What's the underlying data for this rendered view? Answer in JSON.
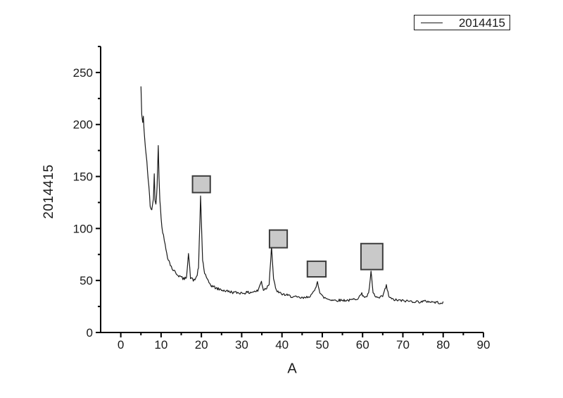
{
  "chart_data": {
    "type": "line",
    "title": "",
    "xlabel": "A",
    "ylabel": "2014415",
    "legend": {
      "label": "2014415",
      "position": "top-right"
    },
    "x_range": [
      -5,
      90
    ],
    "y_range": [
      0,
      275
    ],
    "x_ticks_major": [
      0,
      10,
      20,
      30,
      40,
      50,
      60,
      70,
      80,
      90
    ],
    "x_ticks_minor": [
      5,
      15,
      25,
      35,
      45,
      55,
      65,
      75,
      85
    ],
    "y_ticks_major": [
      0,
      50,
      100,
      150,
      200,
      250
    ],
    "y_ticks_minor": [
      25,
      75,
      125,
      175,
      225,
      275
    ],
    "grid": false,
    "line_color": "#1a1a1a",
    "axis_color": "#000000",
    "series": [
      {
        "name": "2014415",
        "noise_base": 1.0,
        "noise_scale": 0.009,
        "step": 0.2,
        "seed": 42,
        "profile": [
          [
            5.0,
            236
          ],
          [
            5.2,
            210
          ],
          [
            5.45,
            200
          ],
          [
            5.6,
            207
          ],
          [
            5.9,
            188
          ],
          [
            6.3,
            170
          ],
          [
            6.8,
            148
          ],
          [
            7.3,
            122
          ],
          [
            7.7,
            118
          ],
          [
            8.1,
            128
          ],
          [
            8.3,
            155
          ],
          [
            8.5,
            127
          ],
          [
            8.7,
            122
          ],
          [
            9.0,
            140
          ],
          [
            9.3,
            181
          ],
          [
            9.5,
            150
          ],
          [
            9.7,
            128
          ],
          [
            10.0,
            110
          ],
          [
            10.4,
            97
          ],
          [
            11.0,
            84
          ],
          [
            11.6,
            73
          ],
          [
            12.3,
            65
          ],
          [
            13.0,
            60
          ],
          [
            14.0,
            56
          ],
          [
            15.0,
            53
          ],
          [
            15.8,
            51
          ],
          [
            16.3,
            54
          ],
          [
            16.8,
            76
          ],
          [
            17.3,
            53
          ],
          [
            18.0,
            50
          ],
          [
            18.8,
            53
          ],
          [
            19.3,
            62
          ],
          [
            19.8,
            131
          ],
          [
            20.3,
            70
          ],
          [
            20.8,
            57
          ],
          [
            21.5,
            50
          ],
          [
            22.5,
            45
          ],
          [
            24.0,
            42
          ],
          [
            26.0,
            40
          ],
          [
            28.0,
            38.5
          ],
          [
            30.0,
            38
          ],
          [
            32.0,
            38.5
          ],
          [
            34.0,
            40
          ],
          [
            34.9,
            49
          ],
          [
            35.4,
            41
          ],
          [
            36.2,
            43
          ],
          [
            36.8,
            47
          ],
          [
            37.4,
            83
          ],
          [
            37.9,
            52
          ],
          [
            38.4,
            42
          ],
          [
            39.2,
            38
          ],
          [
            40.5,
            36.5
          ],
          [
            42.0,
            35
          ],
          [
            44.0,
            33.5
          ],
          [
            45.5,
            33
          ],
          [
            46.8,
            35
          ],
          [
            47.6,
            37
          ],
          [
            48.3,
            42
          ],
          [
            48.8,
            50
          ],
          [
            49.4,
            38
          ],
          [
            50.2,
            34
          ],
          [
            51.5,
            32
          ],
          [
            53.0,
            31
          ],
          [
            55.0,
            31
          ],
          [
            57.0,
            31
          ],
          [
            58.8,
            33
          ],
          [
            59.8,
            37
          ],
          [
            60.7,
            33.5
          ],
          [
            61.5,
            37
          ],
          [
            62.1,
            58
          ],
          [
            62.6,
            38
          ],
          [
            63.3,
            34
          ],
          [
            64.2,
            33
          ],
          [
            65.0,
            35
          ],
          [
            65.9,
            45
          ],
          [
            66.5,
            35
          ],
          [
            67.2,
            32
          ],
          [
            68.5,
            31
          ],
          [
            70.0,
            30.5
          ],
          [
            72.0,
            30
          ],
          [
            74.0,
            29.5
          ],
          [
            76.0,
            30
          ],
          [
            78.0,
            29
          ],
          [
            80.0,
            28.5
          ]
        ]
      }
    ],
    "peak_markers": {
      "fill": "#c9c9c9",
      "stroke": "#3d3d3d",
      "boxes": [
        {
          "x_min": 17.8,
          "x_max": 22.2,
          "y_min": 134.5,
          "y_max": 150.5
        },
        {
          "x_min": 36.9,
          "x_max": 41.3,
          "y_min": 81.5,
          "y_max": 98.5
        },
        {
          "x_min": 46.3,
          "x_max": 50.9,
          "y_min": 53.5,
          "y_max": 68.5
        },
        {
          "x_min": 59.6,
          "x_max": 65.0,
          "y_min": 60.5,
          "y_max": 85.5
        }
      ]
    }
  }
}
